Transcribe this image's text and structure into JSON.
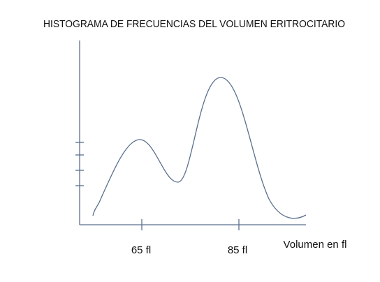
{
  "title": "HISTOGRAMA DE FRECUENCIAS DEL VOLUMEN ERITROCITARIO",
  "x_axis": {
    "label": "Volumen en fl",
    "tick_labels": [
      "65 fl",
      "85 fl"
    ]
  }
}
